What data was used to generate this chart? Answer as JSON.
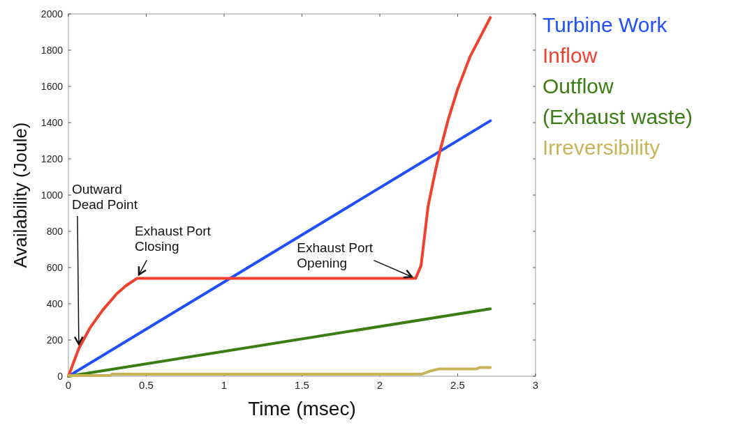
{
  "chart_data": {
    "type": "line",
    "xlabel": "Time (msec)",
    "ylabel": "Availability (Joule)",
    "xlim": [
      0,
      3
    ],
    "ylim": [
      0,
      2000
    ],
    "xticks": [
      0,
      0.5,
      1,
      1.5,
      2,
      2.5,
      3
    ],
    "yticks": [
      0,
      200,
      400,
      600,
      800,
      1000,
      1200,
      1400,
      1600,
      1800,
      2000
    ],
    "grid": false,
    "legend": "right",
    "marker": "none",
    "line_style": "solid",
    "series": [
      {
        "name": "Turbine Work",
        "color": "#1f4fff",
        "x": [
          0,
          2.71
        ],
        "values": [
          0,
          1410
        ]
      },
      {
        "name": "Inflow",
        "color": "#f0402e",
        "x": [
          0,
          0.067,
          0.14,
          0.22,
          0.31,
          0.37,
          0.44,
          2.23,
          2.265,
          2.31,
          2.36,
          2.39,
          2.44,
          2.5,
          2.58,
          2.71
        ],
        "values": [
          0,
          154,
          269,
          365,
          455,
          500,
          540,
          540,
          611,
          938,
          1146,
          1255,
          1419,
          1585,
          1765,
          1980
        ]
      },
      {
        "name": "Outflow\n(Exhaust waste)",
        "color": "#3a7d12",
        "x": [
          0,
          2.71
        ],
        "values": [
          0,
          372
        ]
      },
      {
        "name": "Irreversibility",
        "color": "#c8b458",
        "x": [
          0,
          0.27,
          0.28,
          2.27,
          2.33,
          2.38,
          2.62,
          2.64,
          2.71
        ],
        "values": [
          4,
          4,
          12,
          12,
          30,
          40,
          40,
          48,
          48
        ]
      }
    ],
    "annotations": [
      {
        "text": "Outward\nDead Point",
        "x": 0.067,
        "y": 154
      },
      {
        "text": "Exhaust Port\nClosing",
        "x": 0.44,
        "y": 540
      },
      {
        "text": "Exhaust Port\nOpening",
        "x": 2.23,
        "y": 540
      }
    ]
  }
}
